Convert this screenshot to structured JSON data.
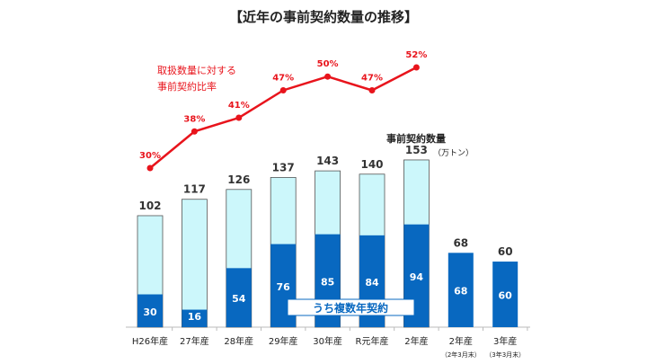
{
  "chart_data": {
    "type": "bar",
    "title": "【近年の事前契約数量の推移】",
    "categories": [
      "H26年産",
      "27年産",
      "28年産",
      "29年産",
      "30年産",
      "R元年産",
      "2年産",
      "2年産",
      "3年産"
    ],
    "category_sublabels": [
      "",
      "",
      "",
      "",
      "",
      "",
      "",
      "（2年3月末）",
      "（3年3月末）"
    ],
    "series": [
      {
        "name": "事前契約数量",
        "values": [
          102,
          117,
          126,
          137,
          143,
          140,
          153,
          68,
          60
        ],
        "color": "#ccf7fb"
      },
      {
        "name": "うち複数年契約",
        "values": [
          30,
          16,
          54,
          76,
          85,
          84,
          94,
          68,
          60
        ],
        "color": "#0868c0"
      }
    ],
    "unit": "（万トン）",
    "line": {
      "name": "取扱数量に対する事前契約比率",
      "name_lines": [
        "取扱数量に対する",
        "事前契約比率"
      ],
      "values": [
        30,
        38,
        41,
        47,
        50,
        47,
        52
      ],
      "labels": [
        "30%",
        "38%",
        "41%",
        "47%",
        "50%",
        "47%",
        "52%"
      ],
      "color": "#e8141c"
    },
    "ylim": [
      0,
      160
    ]
  }
}
